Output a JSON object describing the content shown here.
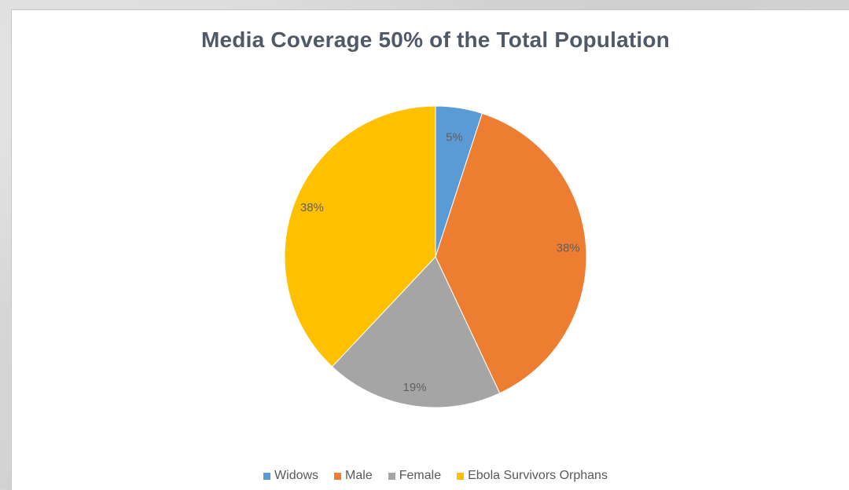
{
  "chart_data": {
    "type": "pie",
    "title": "Media Coverage 50% of the Total Population",
    "legend_position": "bottom",
    "slices": [
      {
        "name": "Widows",
        "value": 5,
        "label": "5%",
        "color": "#5b9bd5"
      },
      {
        "name": "Male",
        "value": 38,
        "label": "38%",
        "color": "#ed7d31"
      },
      {
        "name": "Female",
        "value": 19,
        "label": "19%",
        "color": "#a5a5a5"
      },
      {
        "name": "Ebola Survivors Orphans",
        "value": 38,
        "label": "38%",
        "color": "#ffc000"
      }
    ]
  }
}
